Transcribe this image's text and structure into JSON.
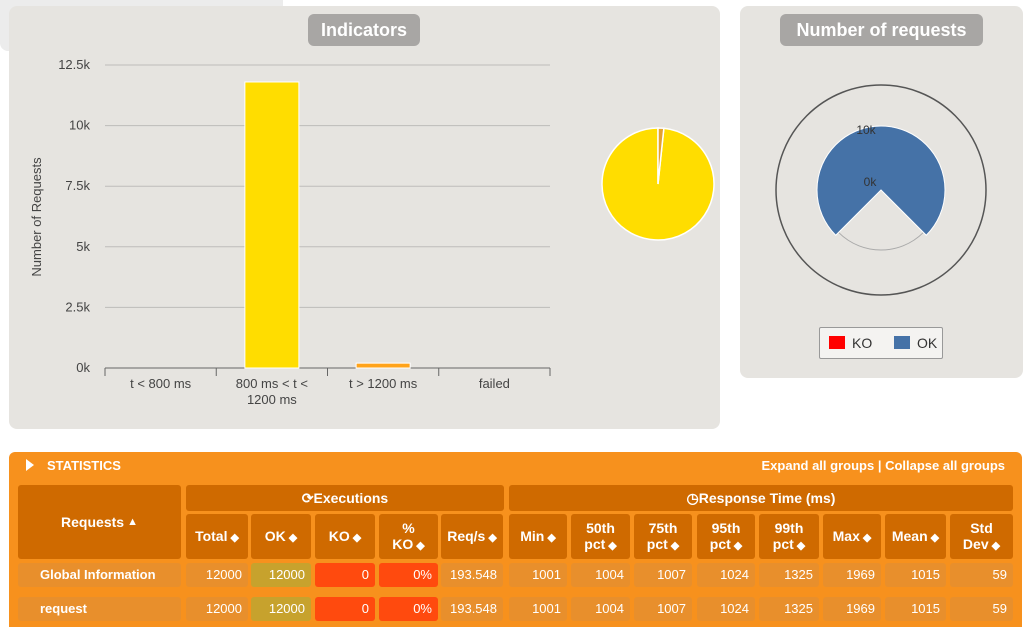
{
  "indicators": {
    "title": "Indicators",
    "chart_data": {
      "type": "bar",
      "title": "Indicators",
      "ylabel": "Number of Requests",
      "ylim": [
        0,
        12500
      ],
      "yticks": [
        "0k",
        "2.5k",
        "5k",
        "7.5k",
        "10k",
        "12.5k"
      ],
      "categories": [
        "t < 800 ms",
        "800 ms < t < 1200 ms",
        "t > 1200 ms",
        "failed"
      ],
      "values": [
        0,
        11800,
        200,
        0
      ],
      "colors": [
        "#4caf50",
        "#ffdd00",
        "#ffa31a",
        "#f15b4f"
      ]
    },
    "pie": {
      "type": "pie",
      "categories": [
        "800 ms < t < 1200 ms",
        "t > 1200 ms"
      ],
      "values": [
        11800,
        200
      ],
      "colors": [
        "#ffdd00",
        "#e3a12f"
      ]
    }
  },
  "requests": {
    "title": "Number of requests",
    "chart_data": {
      "type": "pie",
      "tick_labels": [
        "10k",
        "0k"
      ],
      "values_ok": 12000,
      "values_ko": 0,
      "color_ok": "#4572a7",
      "color_ko": "#ff0000"
    },
    "legend": [
      {
        "label": "KO",
        "color": "#ff0000"
      },
      {
        "label": "OK",
        "color": "#4572a7"
      }
    ]
  },
  "statistics": {
    "title": "STATISTICS",
    "expand_label": "Expand all groups",
    "separator": " | ",
    "collapse_label": "Collapse all groups",
    "group_requests": "Requests",
    "group_executions": "Executions",
    "group_response": "Response Time (ms)",
    "sort_up": "▲",
    "sort_both": "◆",
    "columns": [
      "Total",
      "OK",
      "KO",
      "%\nKO",
      "Req/s",
      "Min",
      "50th\npct",
      "75th\npct",
      "95th\npct",
      "99th\npct",
      "Max",
      "Mean",
      "Std\nDev"
    ],
    "rows": [
      {
        "name": "Global Information",
        "values": [
          "12000",
          "12000",
          "0",
          "0%",
          "193.548",
          "1001",
          "1004",
          "1007",
          "1024",
          "1325",
          "1969",
          "1015",
          "59"
        ]
      },
      {
        "name": "request",
        "values": [
          "12000",
          "12000",
          "0",
          "0%",
          "193.548",
          "1001",
          "1004",
          "1007",
          "1024",
          "1325",
          "1969",
          "1015",
          "59"
        ]
      }
    ]
  }
}
